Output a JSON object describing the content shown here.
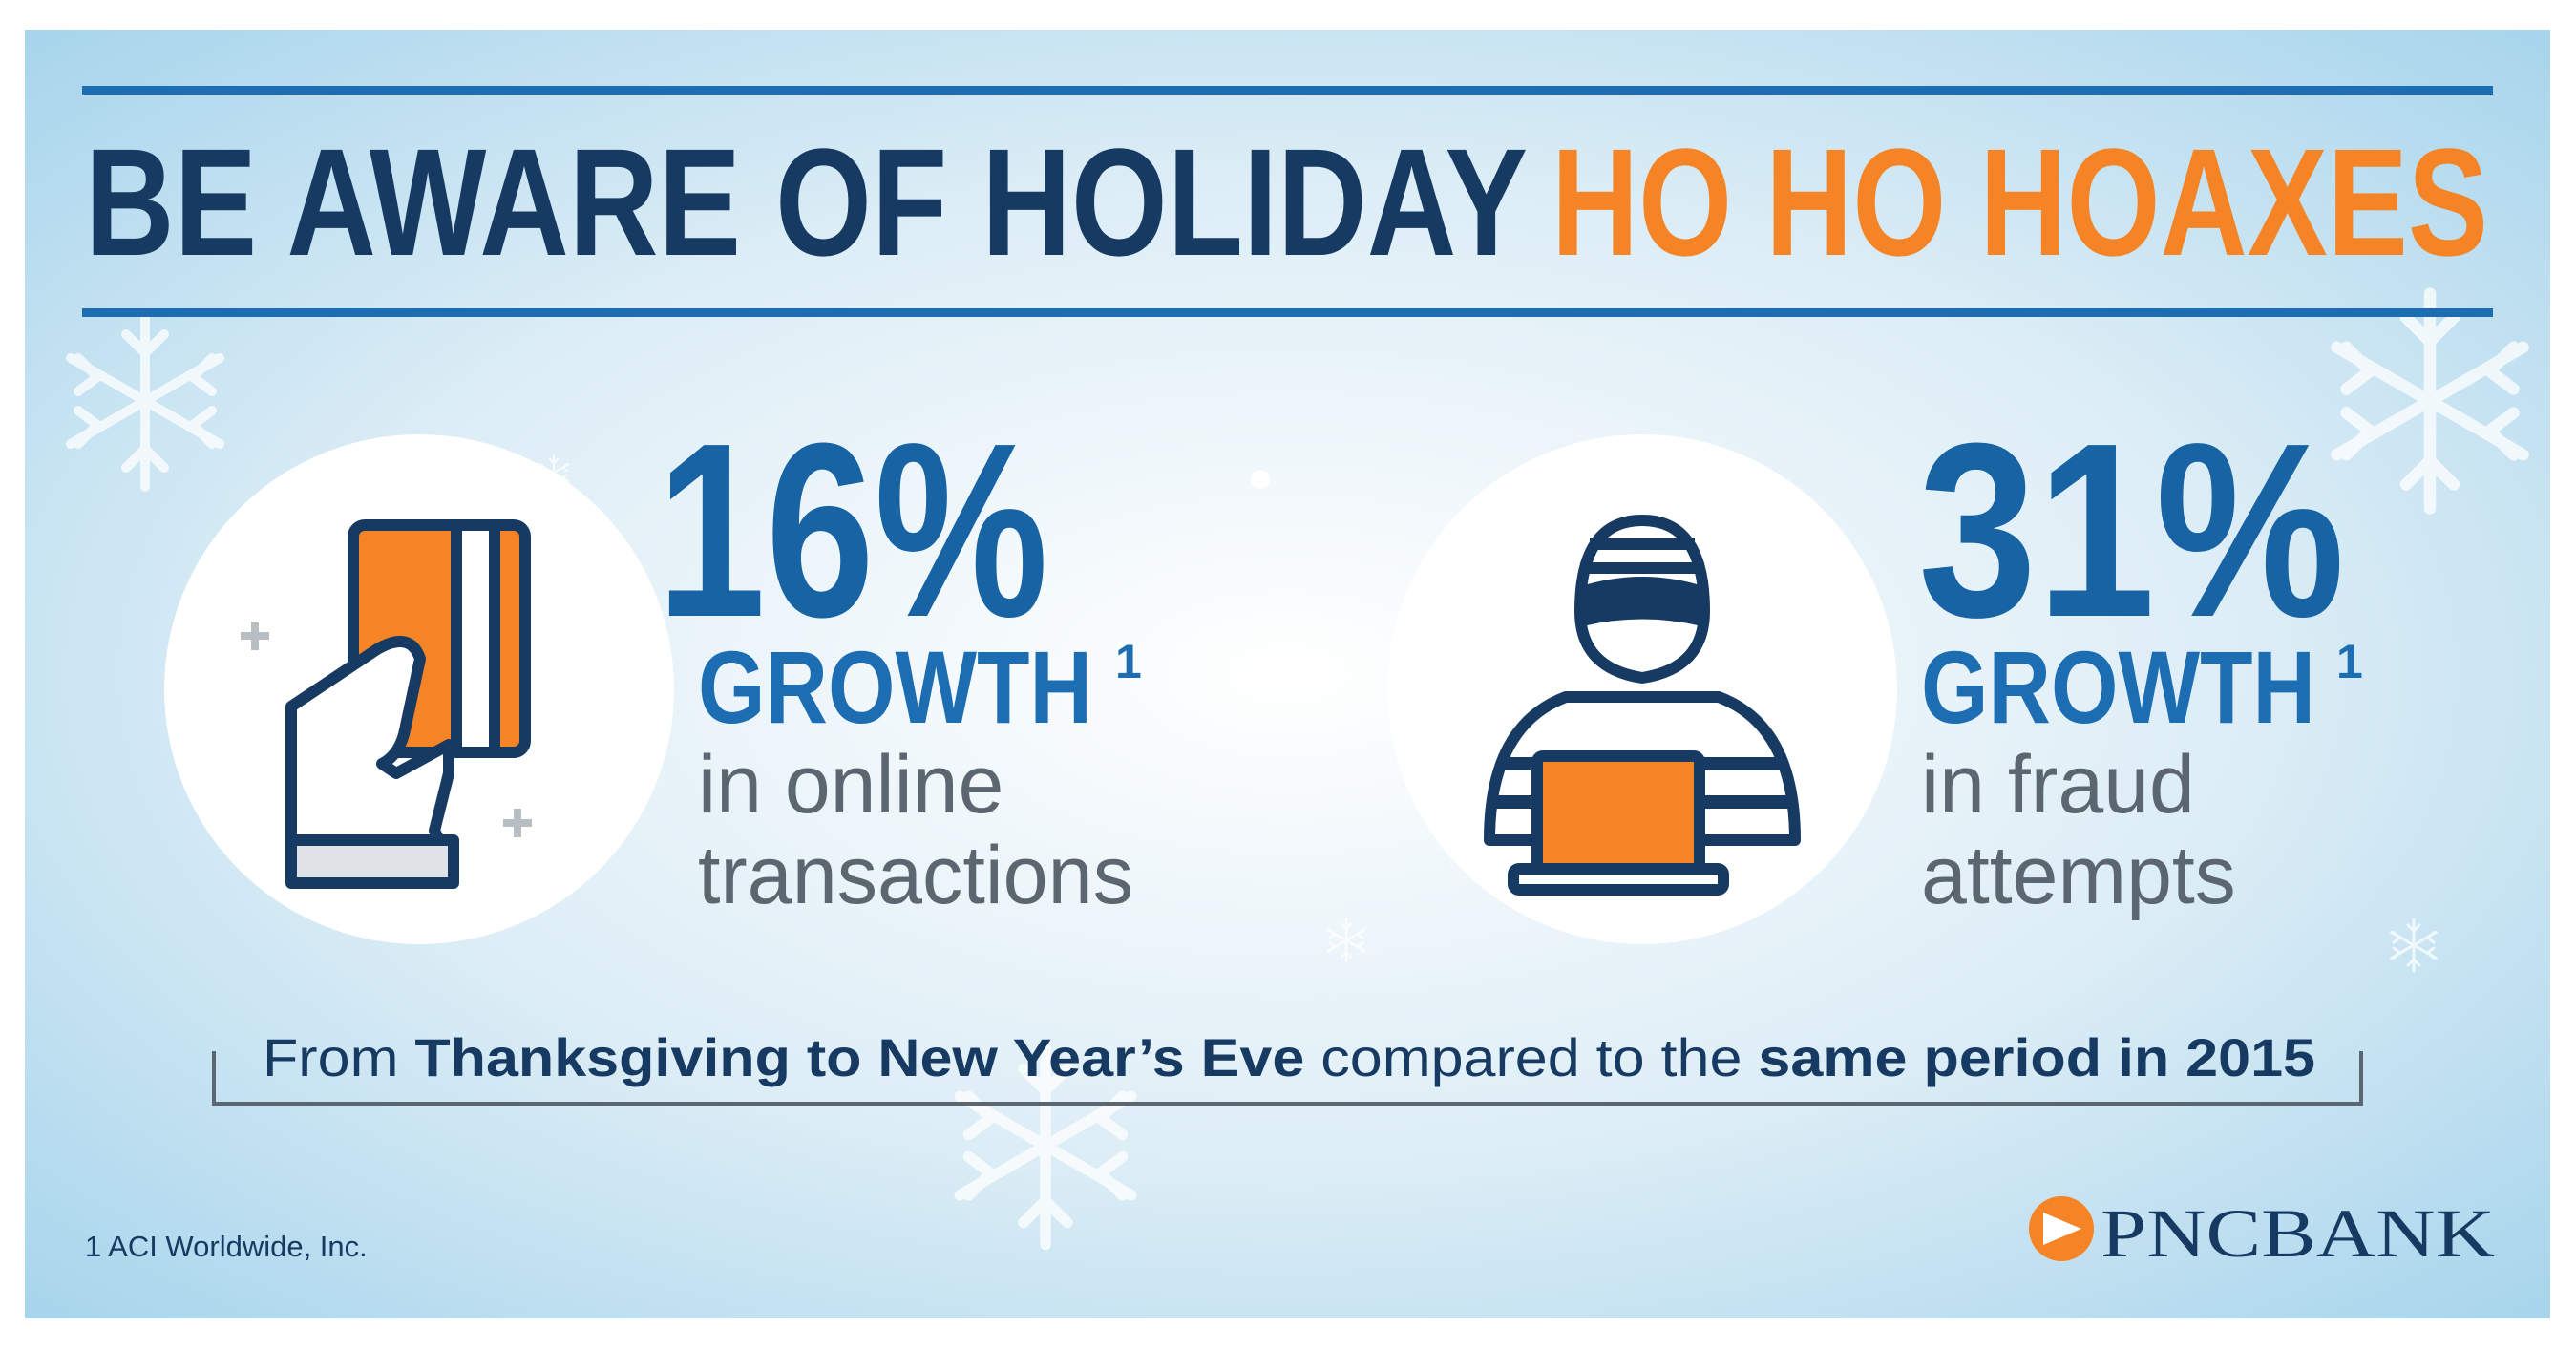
{
  "header": {
    "title_main": "BE AWARE OF HOLIDAY",
    "title_accent": "HO HO HOAXES"
  },
  "stats": [
    {
      "figure": "16%",
      "label": "GROWTH",
      "footnote_mark": "1",
      "description": [
        "in online",
        "transactions"
      ]
    },
    {
      "figure": "31%",
      "label": "GROWTH",
      "footnote_mark": "1",
      "description": [
        "in fraud",
        "attempts"
      ]
    }
  ],
  "note": [
    "From ",
    "Thanksgiving to New Year’s Eve",
    " compared to the ",
    "same period in 2015"
  ],
  "source": "1 ACI Worldwide, Inc.",
  "logo": {
    "name": "PNC",
    "suffix": "BANK"
  }
}
